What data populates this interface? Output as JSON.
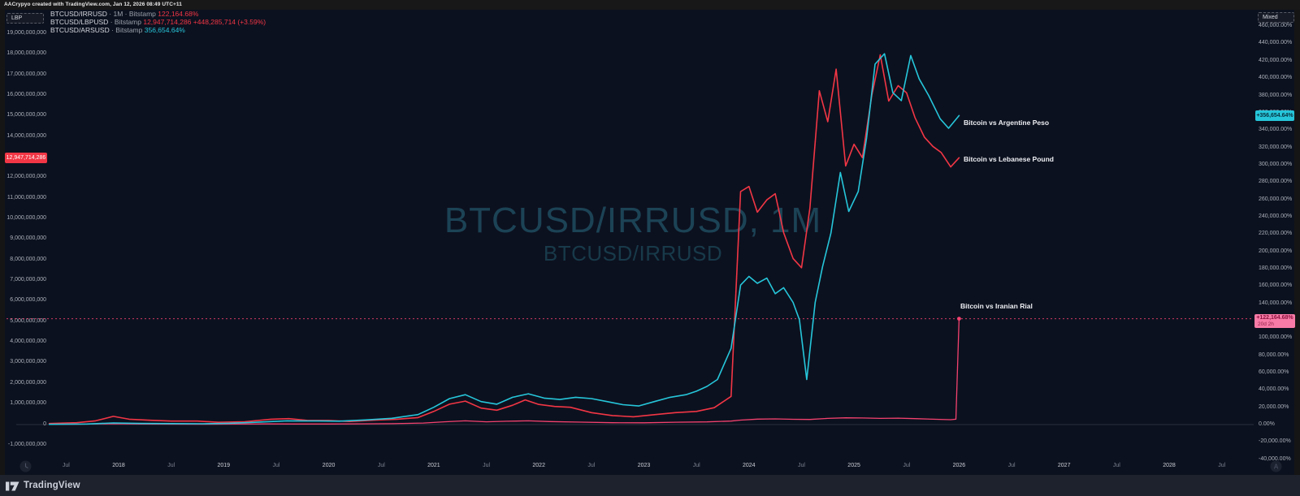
{
  "attribution": {
    "text": "AACrypyo created with TradingView.com, Jan 12, 2026 08:49 UTC+11"
  },
  "toolbar": {
    "left_scale_label": "LBP",
    "right_scale_label": "Mixed"
  },
  "legend": {
    "rows": [
      {
        "name": "BTCUSD/IRRUSD",
        "meta": "· 1M · Bitstamp",
        "value": "122,164.68%",
        "value_color": "#f23645"
      },
      {
        "name": "BTCUSD/LBPUSD",
        "meta": "· Bitstamp",
        "value": "12,947,714,286  +448,285,714 (+3.59%)",
        "value_color": "#f23645"
      },
      {
        "name": "BTCUSD/ARSUSD",
        "meta": "· Bitstamp",
        "value": "356,654.64%",
        "value_color": "#26c6da"
      }
    ]
  },
  "watermark": {
    "line1": "BTCUSD/IRRUSD, 1M",
    "line2": "BTCUSD/IRRUSD"
  },
  "price_labels": {
    "lbp": "12,947,714,286",
    "ars": "+356,654.64%",
    "irr_value": "+122,164.68%",
    "irr_countdown": "20d 2h"
  },
  "footer": {
    "brand": "TradingView"
  },
  "colors": {
    "red": "#f23645",
    "cyan": "#26c6da",
    "pink": "#f4426f",
    "pink_label_bg": "#f77ba6",
    "background": "#0c111f",
    "bottom_bar": "#1e222d"
  },
  "axes": {
    "left": [
      {
        "v": 19,
        "label": "19,000,000,000"
      },
      {
        "v": 18,
        "label": "18,000,000,000"
      },
      {
        "v": 17,
        "label": "17,000,000,000"
      },
      {
        "v": 16,
        "label": "16,000,000,000"
      },
      {
        "v": 15,
        "label": "15,000,000,000"
      },
      {
        "v": 14,
        "label": "14,000,000,000"
      },
      {
        "v": 12,
        "label": "12,000,000,000"
      },
      {
        "v": 11,
        "label": "11,000,000,000"
      },
      {
        "v": 10,
        "label": "10,000,000,000"
      },
      {
        "v": 9,
        "label": "9,000,000,000"
      },
      {
        "v": 8,
        "label": "8,000,000,000"
      },
      {
        "v": 7,
        "label": "7,000,000,000"
      },
      {
        "v": 6,
        "label": "6,000,000,000"
      },
      {
        "v": 5,
        "label": "5,000,000,000"
      },
      {
        "v": 4,
        "label": "4,000,000,000"
      },
      {
        "v": 3,
        "label": "3,000,000,000"
      },
      {
        "v": 2,
        "label": "2,000,000,000"
      },
      {
        "v": 1,
        "label": "1,000,000,000"
      },
      {
        "v": 0,
        "label": "0"
      },
      {
        "v": -1,
        "label": "-1,000,000,000"
      }
    ],
    "right": [
      {
        "v": 460000,
        "label": "460,000.00%"
      },
      {
        "v": 440000,
        "label": "440,000.00%"
      },
      {
        "v": 420000,
        "label": "420,000.00%"
      },
      {
        "v": 400000,
        "label": "400,000.00%"
      },
      {
        "v": 380000,
        "label": "380,000.00%"
      },
      {
        "v": 360000,
        "label": "360,000.00%"
      },
      {
        "v": 340000,
        "label": "340,000.00%"
      },
      {
        "v": 320000,
        "label": "320,000.00%"
      },
      {
        "v": 300000,
        "label": "300,000.00%"
      },
      {
        "v": 280000,
        "label": "280,000.00%"
      },
      {
        "v": 260000,
        "label": "260,000.00%"
      },
      {
        "v": 240000,
        "label": "240,000.00%"
      },
      {
        "v": 220000,
        "label": "220,000.00%"
      },
      {
        "v": 200000,
        "label": "200,000.00%"
      },
      {
        "v": 180000,
        "label": "180,000.00%"
      },
      {
        "v": 160000,
        "label": "160,000.00%"
      },
      {
        "v": 140000,
        "label": "140,000.00%"
      },
      {
        "v": 100000,
        "label": "100,000.00%"
      },
      {
        "v": 80000,
        "label": "80,000.00%"
      },
      {
        "v": 60000,
        "label": "60,000.00%"
      },
      {
        "v": 40000,
        "label": "40,000.00%"
      },
      {
        "v": 20000,
        "label": "20,000.00%"
      },
      {
        "v": 0,
        "label": "0.00%"
      },
      {
        "v": -20000,
        "label": "-20,000.00%"
      },
      {
        "v": -40000,
        "label": "-40,000.00%"
      }
    ],
    "time": [
      {
        "t": 2017.5,
        "label": "Jul"
      },
      {
        "t": 2018,
        "label": "2018"
      },
      {
        "t": 2018.5,
        "label": "Jul"
      },
      {
        "t": 2019,
        "label": "2019"
      },
      {
        "t": 2019.5,
        "label": "Jul"
      },
      {
        "t": 2020,
        "label": "2020"
      },
      {
        "t": 2020.5,
        "label": "Jul"
      },
      {
        "t": 2021,
        "label": "2021"
      },
      {
        "t": 2021.5,
        "label": "Jul"
      },
      {
        "t": 2022,
        "label": "2022"
      },
      {
        "t": 2022.5,
        "label": "Jul"
      },
      {
        "t": 2023,
        "label": "2023"
      },
      {
        "t": 2023.5,
        "label": "Jul"
      },
      {
        "t": 2024,
        "label": "2024"
      },
      {
        "t": 2024.5,
        "label": "Jul"
      },
      {
        "t": 2025,
        "label": "2025"
      },
      {
        "t": 2025.5,
        "label": "Jul"
      },
      {
        "t": 2026,
        "label": "2026"
      },
      {
        "t": 2026.5,
        "label": "Jul"
      },
      {
        "t": 2027,
        "label": "2027"
      },
      {
        "t": 2027.5,
        "label": "Jul"
      },
      {
        "t": 2028,
        "label": "2028"
      },
      {
        "t": 2028.5,
        "label": "Jul"
      }
    ]
  },
  "chart_data": {
    "type": "line",
    "title": "BTCUSD/IRRUSD, 1M",
    "timeframe": "1M",
    "exchange": "Bitstamp",
    "x_range_years": [
      2017.3,
      2028.9
    ],
    "left_axis": {
      "currency": "LBP",
      "unit": "billions LBP",
      "range": [
        -1.5,
        20.1
      ]
    },
    "right_axis": {
      "unit": "percent change",
      "range": [
        -40000,
        477000
      ]
    },
    "price_line": {
      "value": 122164.68,
      "axis": "right",
      "label": "+122,164.68%",
      "countdown": "20d 2h"
    },
    "zero_line": {
      "value": 0
    },
    "series": [
      {
        "name": "BTCUSD/IRRUSD",
        "label": "Bitcoin vs Iranian Rial",
        "axis": "right",
        "unit": "%",
        "color": "#f4426f",
        "width": 1.3,
        "last_value": 122164.68,
        "points": [
          [
            2017.34,
            150
          ],
          [
            2017.6,
            400
          ],
          [
            2017.95,
            900
          ],
          [
            2018.2,
            600
          ],
          [
            2018.5,
            450
          ],
          [
            2018.8,
            400
          ],
          [
            2019.1,
            600
          ],
          [
            2019.4,
            750
          ],
          [
            2019.7,
            650
          ],
          [
            2020.0,
            700
          ],
          [
            2020.3,
            800
          ],
          [
            2020.6,
            1000
          ],
          [
            2020.9,
            1800
          ],
          [
            2021.1,
            3200
          ],
          [
            2021.3,
            4300
          ],
          [
            2021.5,
            3200
          ],
          [
            2021.7,
            3800
          ],
          [
            2021.9,
            4300
          ],
          [
            2022.1,
            3500
          ],
          [
            2022.4,
            2800
          ],
          [
            2022.7,
            2200
          ],
          [
            2023.0,
            2100
          ],
          [
            2023.3,
            2700
          ],
          [
            2023.6,
            3100
          ],
          [
            2023.83,
            4000
          ],
          [
            2023.92,
            5200
          ],
          [
            2024.08,
            6300
          ],
          [
            2024.25,
            6600
          ],
          [
            2024.42,
            6100
          ],
          [
            2024.58,
            5900
          ],
          [
            2024.75,
            7100
          ],
          [
            2024.92,
            7800
          ],
          [
            2025.08,
            7600
          ],
          [
            2025.25,
            7100
          ],
          [
            2025.42,
            7400
          ],
          [
            2025.58,
            6800
          ],
          [
            2025.75,
            6200
          ],
          [
            2025.92,
            5600
          ],
          [
            2025.97,
            6200
          ],
          [
            2026.0,
            122164.68
          ]
        ]
      },
      {
        "name": "BTCUSD/LBPUSD",
        "label": "Bitcoin vs Lebanese Pound",
        "axis": "left",
        "unit": "billions LBP",
        "color": "#f23645",
        "width": 1.6,
        "last_value": 12.947714286,
        "points": [
          [
            2017.34,
            0.03
          ],
          [
            2017.6,
            0.07
          ],
          [
            2017.78,
            0.16
          ],
          [
            2017.95,
            0.38
          ],
          [
            2018.1,
            0.24
          ],
          [
            2018.3,
            0.19
          ],
          [
            2018.5,
            0.15
          ],
          [
            2018.75,
            0.15
          ],
          [
            2018.95,
            0.09
          ],
          [
            2019.2,
            0.12
          ],
          [
            2019.45,
            0.24
          ],
          [
            2019.62,
            0.27
          ],
          [
            2019.8,
            0.18
          ],
          [
            2020.0,
            0.18
          ],
          [
            2020.2,
            0.13
          ],
          [
            2020.45,
            0.2
          ],
          [
            2020.65,
            0.24
          ],
          [
            2020.85,
            0.32
          ],
          [
            2021.0,
            0.62
          ],
          [
            2021.15,
            0.97
          ],
          [
            2021.3,
            1.12
          ],
          [
            2021.45,
            0.78
          ],
          [
            2021.6,
            0.68
          ],
          [
            2021.75,
            0.92
          ],
          [
            2021.87,
            1.18
          ],
          [
            2022.0,
            0.96
          ],
          [
            2022.15,
            0.86
          ],
          [
            2022.3,
            0.82
          ],
          [
            2022.5,
            0.56
          ],
          [
            2022.7,
            0.42
          ],
          [
            2022.9,
            0.36
          ],
          [
            2023.1,
            0.46
          ],
          [
            2023.3,
            0.56
          ],
          [
            2023.5,
            0.62
          ],
          [
            2023.67,
            0.8
          ],
          [
            2023.83,
            1.35
          ],
          [
            2023.92,
            11.3
          ],
          [
            2024.0,
            11.55
          ],
          [
            2024.08,
            10.3
          ],
          [
            2024.17,
            10.9
          ],
          [
            2024.25,
            11.2
          ],
          [
            2024.33,
            9.3
          ],
          [
            2024.42,
            8.05
          ],
          [
            2024.5,
            7.6
          ],
          [
            2024.58,
            10.5
          ],
          [
            2024.67,
            16.2
          ],
          [
            2024.75,
            14.7
          ],
          [
            2024.83,
            17.25
          ],
          [
            2024.92,
            12.55
          ],
          [
            2025.0,
            13.6
          ],
          [
            2025.08,
            12.95
          ],
          [
            2025.17,
            16.0
          ],
          [
            2025.25,
            17.95
          ],
          [
            2025.33,
            15.7
          ],
          [
            2025.42,
            16.45
          ],
          [
            2025.5,
            16.1
          ],
          [
            2025.58,
            14.9
          ],
          [
            2025.67,
            13.95
          ],
          [
            2025.75,
            13.5
          ],
          [
            2025.83,
            13.2
          ],
          [
            2025.92,
            12.5
          ],
          [
            2026.0,
            12.947714286
          ]
        ]
      },
      {
        "name": "BTCUSD/ARSUSD",
        "label": "Bitcoin vs Argentine Peso",
        "axis": "right",
        "unit": "%",
        "color": "#26c6da",
        "width": 1.6,
        "last_value": 356654.64,
        "points": [
          [
            2017.34,
            250
          ],
          [
            2017.7,
            700
          ],
          [
            2017.95,
            1900
          ],
          [
            2018.2,
            1300
          ],
          [
            2018.5,
            1100
          ],
          [
            2018.8,
            950
          ],
          [
            2019.05,
            1500
          ],
          [
            2019.3,
            2600
          ],
          [
            2019.6,
            4300
          ],
          [
            2019.9,
            4100
          ],
          [
            2020.1,
            3900
          ],
          [
            2020.35,
            5300
          ],
          [
            2020.6,
            7200
          ],
          [
            2020.85,
            11500
          ],
          [
            2021.0,
            20000
          ],
          [
            2021.15,
            30000
          ],
          [
            2021.3,
            34500
          ],
          [
            2021.45,
            26500
          ],
          [
            2021.6,
            23500
          ],
          [
            2021.75,
            31500
          ],
          [
            2021.9,
            35500
          ],
          [
            2022.05,
            30500
          ],
          [
            2022.2,
            29000
          ],
          [
            2022.35,
            31500
          ],
          [
            2022.5,
            30000
          ],
          [
            2022.65,
            26500
          ],
          [
            2022.8,
            23000
          ],
          [
            2022.95,
            21500
          ],
          [
            2023.1,
            26500
          ],
          [
            2023.25,
            31500
          ],
          [
            2023.4,
            34500
          ],
          [
            2023.5,
            38500
          ],
          [
            2023.6,
            44000
          ],
          [
            2023.7,
            52000
          ],
          [
            2023.83,
            88000
          ],
          [
            2023.92,
            161000
          ],
          [
            2024.0,
            171000
          ],
          [
            2024.08,
            163000
          ],
          [
            2024.17,
            169000
          ],
          [
            2024.25,
            151000
          ],
          [
            2024.33,
            158000
          ],
          [
            2024.42,
            141000
          ],
          [
            2024.48,
            121000
          ],
          [
            2024.55,
            52000
          ],
          [
            2024.63,
            141000
          ],
          [
            2024.7,
            182000
          ],
          [
            2024.78,
            221000
          ],
          [
            2024.87,
            291000
          ],
          [
            2024.95,
            246000
          ],
          [
            2025.04,
            269000
          ],
          [
            2025.12,
            331000
          ],
          [
            2025.2,
            416000
          ],
          [
            2025.29,
            428000
          ],
          [
            2025.37,
            383000
          ],
          [
            2025.45,
            374000
          ],
          [
            2025.54,
            426000
          ],
          [
            2025.62,
            399000
          ],
          [
            2025.71,
            380000
          ],
          [
            2025.82,
            353000
          ],
          [
            2025.9,
            342000
          ],
          [
            2026.0,
            356654.64
          ]
        ]
      }
    ]
  }
}
